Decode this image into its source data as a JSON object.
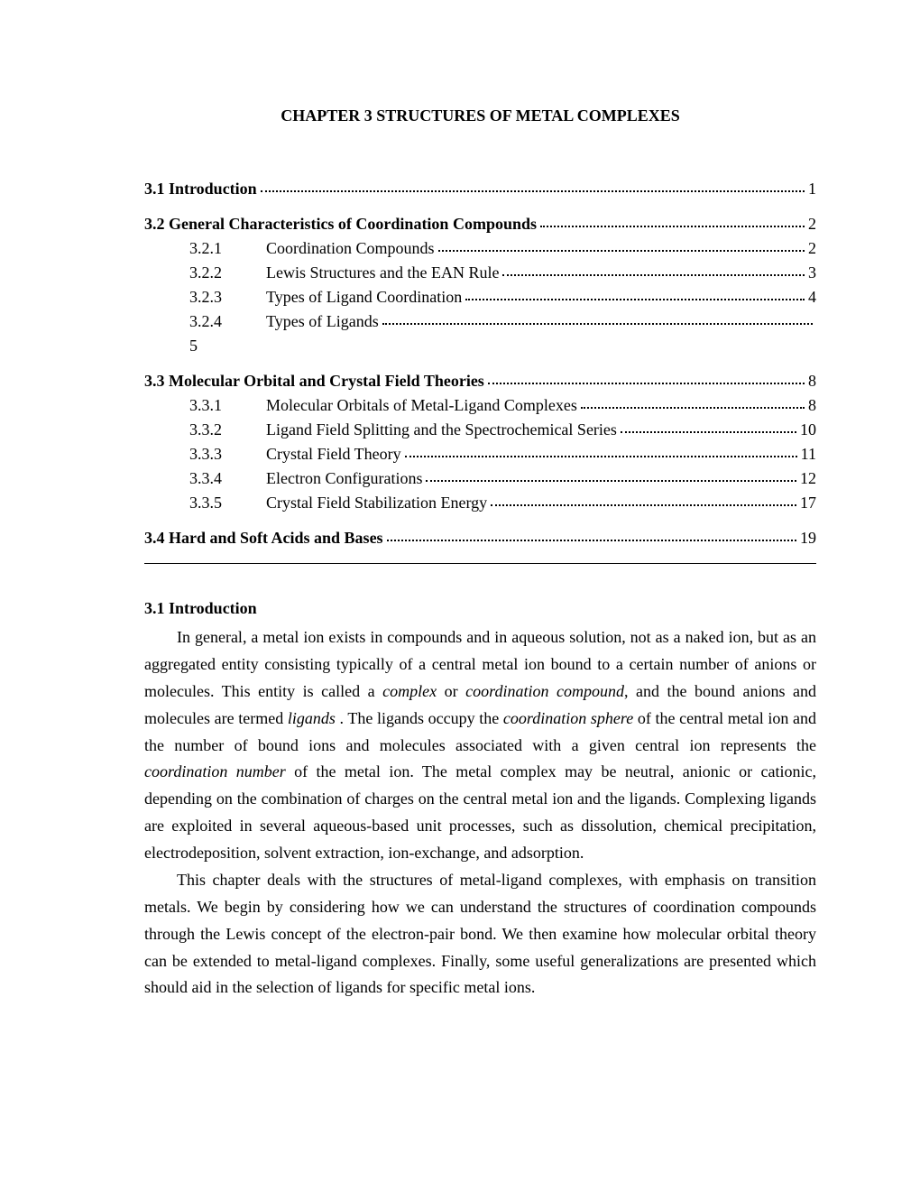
{
  "chapter_title": "CHAPTER 3   STRUCTURES OF METAL COMPLEXES",
  "toc": {
    "sections": [
      {
        "heading_label": "3.1 Introduction",
        "heading_page": "1",
        "subs": []
      },
      {
        "heading_label": "3.2 General Characteristics of Coordination Compounds",
        "heading_page": "2",
        "subs": [
          {
            "num": "3.2.1",
            "label": "Coordination Compounds",
            "page": "2"
          },
          {
            "num": "3.2.2",
            "label": "Lewis Structures and the EAN Rule",
            "page": "3"
          },
          {
            "num": "3.2.3",
            "label": "Types of Ligand Coordination",
            "page": "4"
          },
          {
            "num": "3.2.4",
            "label": "Types  of  Ligands",
            "page": "5",
            "wrap": true
          }
        ]
      },
      {
        "heading_label": "3.3 Molecular Orbital and Crystal Field Theories",
        "heading_page": "8",
        "subs": [
          {
            "num": "3.3.1",
            "label": "Molecular Orbitals of Metal-Ligand Complexes",
            "page": "8"
          },
          {
            "num": "3.3.2",
            "label": "Ligand Field Splitting and the Spectrochemical Series",
            "page": "10"
          },
          {
            "num": "3.3.3",
            "label": "Crystal Field Theory",
            "page": "11"
          },
          {
            "num": "3.3.4",
            "label": "Electron Configurations",
            "page": "12"
          },
          {
            "num": "3.3.5",
            "label": "Crystal Field Stabilization Energy",
            "page": "17"
          }
        ]
      },
      {
        "heading_label": "3.4 Hard and Soft Acids and Bases",
        "heading_page": "19",
        "subs": []
      }
    ]
  },
  "body": {
    "heading": "3.1 Introduction",
    "para1_html": "In general, a metal ion exists in compounds and in aqueous solution, not as a naked ion, but as an aggregated entity consisting typically of a central metal ion bound to a certain number of anions or molecules.  This entity is called a <em>complex</em> or <em>coordination compound</em>, and the bound anions and molecules are termed <em>ligands</em> .  The ligands occupy the <em>coordination sphere</em> of the central metal ion and the number of bound ions and molecules associated with a given central ion represents the <em>coordination number</em> of the metal ion.  The metal complex may be neutral, anionic or cationic, depending on the combination of charges on the central metal ion and the ligands. Complexing ligands are exploited in several aqueous-based unit processes, such as dissolution, chemical precipitation, electrodeposition, solvent extraction, ion-exchange, and adsorption.",
    "para2_html": "This chapter deals with the structures of metal-ligand complexes, with emphasis on transition metals.  We begin by considering how we can understand the structures of coordination compounds through the Lewis concept of the electron-pair bond.  We then examine how molecular orbital theory can be extended to metal-ligand complexes.  Finally, some useful generalizations are presented which should aid in the selection of ligands for specific metal ions."
  }
}
